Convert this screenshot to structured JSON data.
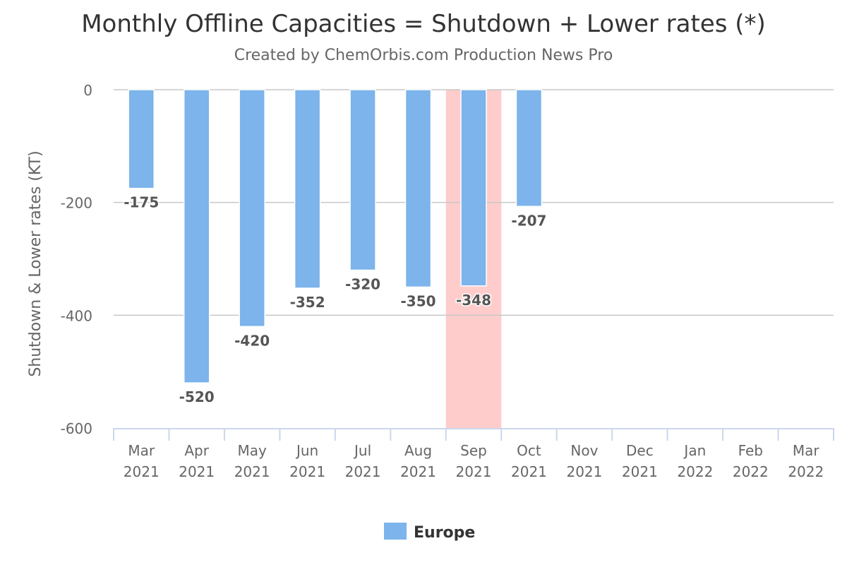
{
  "chart_data": {
    "type": "bar",
    "title": "Monthly Offline Capacities = Shutdown + Lower rates (*)",
    "subtitle": "Created by ChemOrbis.com Production News Pro",
    "xlabel": "",
    "ylabel": "Shutdown & Lower rates (KT)",
    "ylim": [
      -600,
      0
    ],
    "y_ticks": [
      0,
      -200,
      -400,
      -600
    ],
    "grid": true,
    "legend_position": "bottom-center",
    "categories": [
      [
        "Mar",
        "2021"
      ],
      [
        "Apr",
        "2021"
      ],
      [
        "May",
        "2021"
      ],
      [
        "Jun",
        "2021"
      ],
      [
        "Jul",
        "2021"
      ],
      [
        "Aug",
        "2021"
      ],
      [
        "Sep",
        "2021"
      ],
      [
        "Oct",
        "2021"
      ],
      [
        "Nov",
        "2021"
      ],
      [
        "Dec",
        "2021"
      ],
      [
        "Jan",
        "2022"
      ],
      [
        "Feb",
        "2022"
      ],
      [
        "Mar",
        "2022"
      ]
    ],
    "series": [
      {
        "name": "Europe",
        "color": "#7cb4eb",
        "values": [
          -175,
          -520,
          -420,
          -352,
          -320,
          -350,
          -348,
          -207,
          null,
          null,
          null,
          null,
          null
        ]
      }
    ],
    "highlight": {
      "category_index": 6,
      "color": "#ffcccc"
    }
  }
}
